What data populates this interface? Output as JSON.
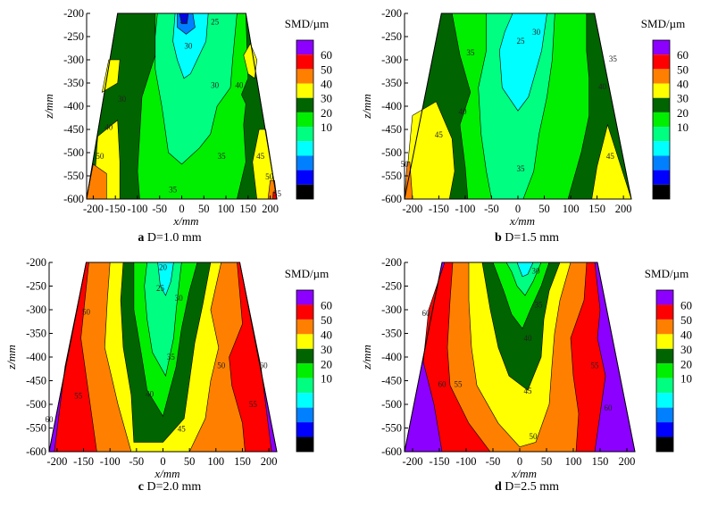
{
  "chart_data": [
    {
      "type": "contour",
      "panel_letter": "a",
      "caption": "D=1.0 mm",
      "xlabel": "x/mm",
      "ylabel": "z/mm",
      "xlim": [
        -215,
        215
      ],
      "ylim": [
        -600,
        -200
      ],
      "xticks": [
        -200,
        -150,
        -100,
        -50,
        0,
        50,
        100,
        150,
        200
      ],
      "yticks": [
        -200,
        -250,
        -300,
        -350,
        -400,
        -450,
        -500,
        -550,
        -600
      ],
      "domain_top_x": [
        -145,
        145
      ],
      "domain_bottom_x": [
        -215,
        215
      ],
      "colorbar_title": "SMD/µm",
      "colorbar_ticks": [
        60,
        50,
        40,
        30,
        20,
        10
      ],
      "contour_labels": [
        {
          "x": 5,
          "z": -215,
          "text": "25"
        },
        {
          "x": 75,
          "z": -218,
          "text": "25"
        },
        {
          "x": 15,
          "z": -270,
          "text": "30"
        },
        {
          "x": 75,
          "z": -355,
          "text": "30"
        },
        {
          "x": 130,
          "z": -355,
          "text": "40"
        },
        {
          "x": -135,
          "z": -385,
          "text": "30"
        },
        {
          "x": -165,
          "z": -445,
          "text": "40"
        },
        {
          "x": -185,
          "z": -508,
          "text": "50"
        },
        {
          "x": 90,
          "z": -508,
          "text": "35"
        },
        {
          "x": 178,
          "z": -508,
          "text": "45"
        },
        {
          "x": 198,
          "z": -552,
          "text": "50"
        },
        {
          "x": -20,
          "z": -580,
          "text": "35"
        },
        {
          "x": 216,
          "z": -588,
          "text": "55"
        }
      ]
    },
    {
      "type": "contour",
      "panel_letter": "b",
      "caption": "D=1.5 mm",
      "xlabel": "x/mm",
      "ylabel": "z/mm",
      "xlim": [
        -215,
        215
      ],
      "ylim": [
        -600,
        -200
      ],
      "xticks": [
        -200,
        -150,
        -100,
        -50,
        0,
        50,
        100,
        150,
        200
      ],
      "yticks": [
        -200,
        -250,
        -300,
        -350,
        -400,
        -450,
        -500,
        -550,
        -600
      ],
      "domain_top_x": [
        -145,
        145
      ],
      "domain_bottom_x": [
        -215,
        215
      ],
      "colorbar_title": "SMD/µm",
      "colorbar_ticks": [
        60,
        50,
        40,
        30,
        20,
        10
      ],
      "contour_labels": [
        {
          "x": 35,
          "z": -240,
          "text": "30"
        },
        {
          "x": 5,
          "z": -260,
          "text": "25"
        },
        {
          "x": -90,
          "z": -285,
          "text": "35"
        },
        {
          "x": 180,
          "z": -298,
          "text": "35"
        },
        {
          "x": 160,
          "z": -358,
          "text": "40"
        },
        {
          "x": -105,
          "z": -412,
          "text": "40"
        },
        {
          "x": -150,
          "z": -462,
          "text": "45"
        },
        {
          "x": 175,
          "z": -508,
          "text": "45"
        },
        {
          "x": 5,
          "z": -535,
          "text": "35"
        },
        {
          "x": -215,
          "z": -525,
          "text": "50"
        }
      ]
    },
    {
      "type": "contour",
      "panel_letter": "c",
      "caption": "D=2.0 mm",
      "xlabel": "x/mm",
      "ylabel": "z/mm",
      "xlim": [
        -215,
        215
      ],
      "ylim": [
        -600,
        -200
      ],
      "xticks": [
        -200,
        -150,
        -100,
        -50,
        0,
        50,
        100,
        150,
        200
      ],
      "yticks": [
        -200,
        -250,
        -300,
        -350,
        -400,
        -450,
        -500,
        -550,
        -600
      ],
      "domain_top_x": [
        -145,
        145
      ],
      "domain_bottom_x": [
        -215,
        215
      ],
      "colorbar_title": "SMD/µm",
      "colorbar_ticks": [
        60,
        50,
        40,
        30,
        20,
        10
      ],
      "contour_labels": [
        {
          "x": 0,
          "z": -210,
          "text": "20"
        },
        {
          "x": -5,
          "z": -255,
          "text": "25"
        },
        {
          "x": 30,
          "z": -275,
          "text": "30"
        },
        {
          "x": -145,
          "z": -305,
          "text": "50"
        },
        {
          "x": 15,
          "z": -400,
          "text": "35"
        },
        {
          "x": 110,
          "z": -418,
          "text": "50"
        },
        {
          "x": 190,
          "z": -418,
          "text": "60"
        },
        {
          "x": -160,
          "z": -482,
          "text": "55"
        },
        {
          "x": -25,
          "z": -478,
          "text": "40"
        },
        {
          "x": 170,
          "z": -500,
          "text": "55"
        },
        {
          "x": -215,
          "z": -532,
          "text": "60"
        },
        {
          "x": 35,
          "z": -552,
          "text": "45"
        }
      ]
    },
    {
      "type": "contour",
      "panel_letter": "d",
      "caption": "D=2.5 mm",
      "xlabel": "x/mm",
      "ylabel": "z/mm",
      "xlim": [
        -215,
        215
      ],
      "ylim": [
        -600,
        -200
      ],
      "xticks": [
        -200,
        -150,
        -100,
        -50,
        0,
        50,
        100,
        150,
        200
      ],
      "yticks": [
        -200,
        -250,
        -300,
        -350,
        -400,
        -450,
        -500,
        -550,
        -600
      ],
      "domain_top_x": [
        -145,
        145
      ],
      "domain_bottom_x": [
        -215,
        215
      ],
      "colorbar_title": "SMD/µm",
      "colorbar_ticks": [
        60,
        50,
        40,
        30,
        20,
        10
      ],
      "contour_labels": [
        {
          "x": 30,
          "z": -218,
          "text": "30"
        },
        {
          "x": 35,
          "z": -290,
          "text": "35"
        },
        {
          "x": -175,
          "z": -308,
          "text": "60"
        },
        {
          "x": 15,
          "z": -360,
          "text": "40"
        },
        {
          "x": 140,
          "z": -418,
          "text": "55"
        },
        {
          "x": -145,
          "z": -458,
          "text": "60"
        },
        {
          "x": -115,
          "z": -458,
          "text": "55"
        },
        {
          "x": 15,
          "z": -472,
          "text": "45"
        },
        {
          "x": 165,
          "z": -508,
          "text": "60"
        },
        {
          "x": 25,
          "z": -568,
          "text": "50"
        }
      ]
    }
  ],
  "legend_colors": [
    "#8c00ff",
    "#ff0000",
    "#ff8000",
    "#ffff00",
    "#006400",
    "#00ee00",
    "#00ff80",
    "#00ffff",
    "#0080ff",
    "#0000ff",
    "#000000"
  ]
}
